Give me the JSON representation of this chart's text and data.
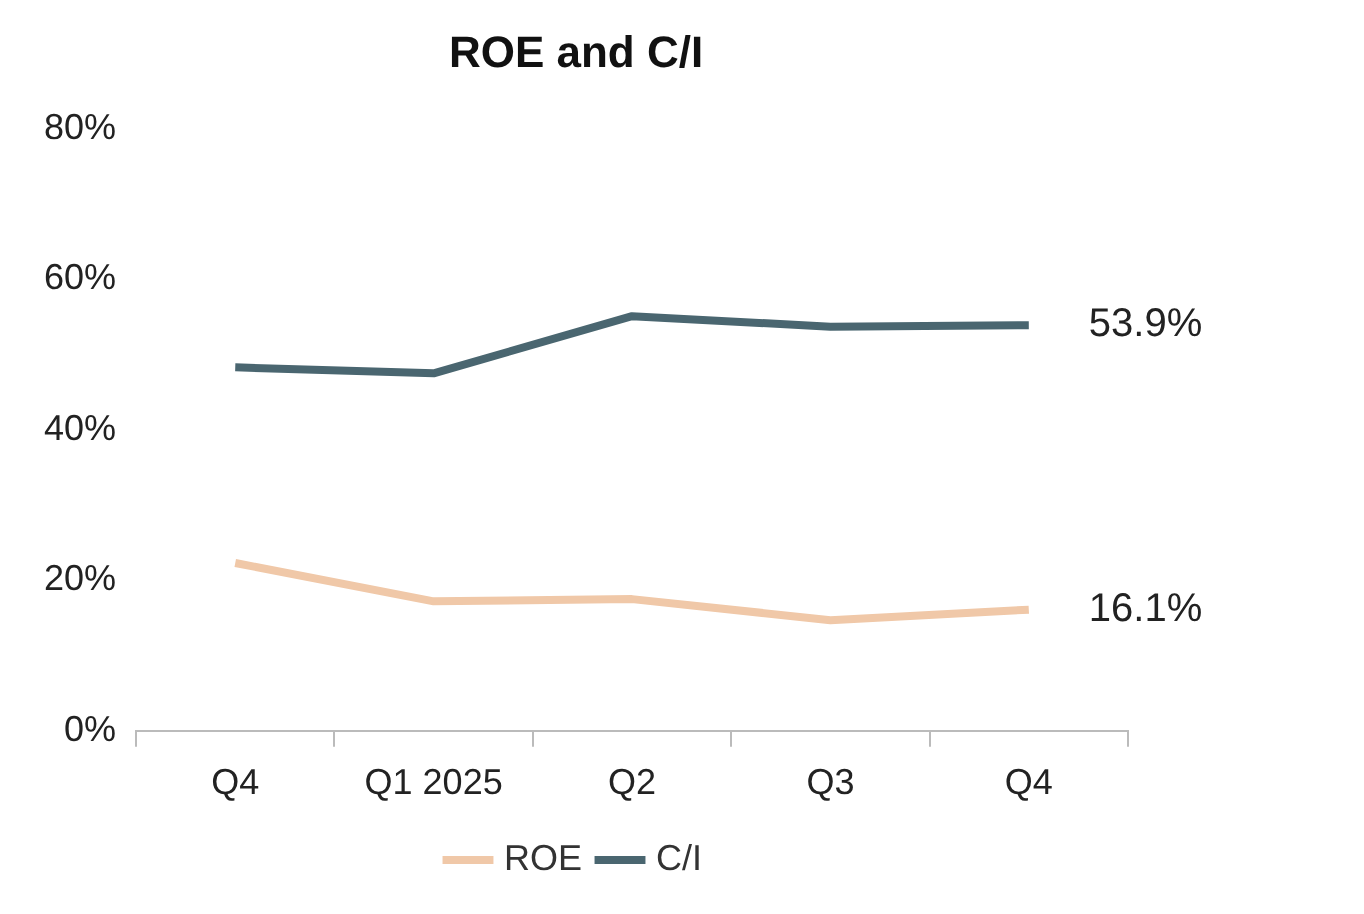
{
  "chart_data": {
    "type": "line",
    "title": "ROE and C/I",
    "categories": [
      "Q4",
      "Q1 2025",
      "Q2",
      "Q3",
      "Q4"
    ],
    "series": [
      {
        "name": "ROE",
        "color": "#f0c8a8",
        "values": [
          22.3,
          17.2,
          17.5,
          14.7,
          16.1
        ],
        "value_labels": [
          null,
          null,
          null,
          null,
          "16.1%"
        ]
      },
      {
        "name": "C/I",
        "color": "#4a6670",
        "values": [
          48.3,
          47.5,
          55.1,
          53.7,
          53.9
        ],
        "value_labels": [
          null,
          null,
          null,
          null,
          "53.9%"
        ]
      }
    ],
    "ylim": [
      0,
      80
    ],
    "yticks": [
      {
        "value": 0,
        "label": "0%"
      },
      {
        "value": 20,
        "label": "20%"
      },
      {
        "value": 40,
        "label": "40%"
      },
      {
        "value": 60,
        "label": "60%"
      },
      {
        "value": 80,
        "label": "80%"
      }
    ],
    "grid": false,
    "legend": "bottom",
    "marker": "none",
    "line_style": "solid"
  }
}
